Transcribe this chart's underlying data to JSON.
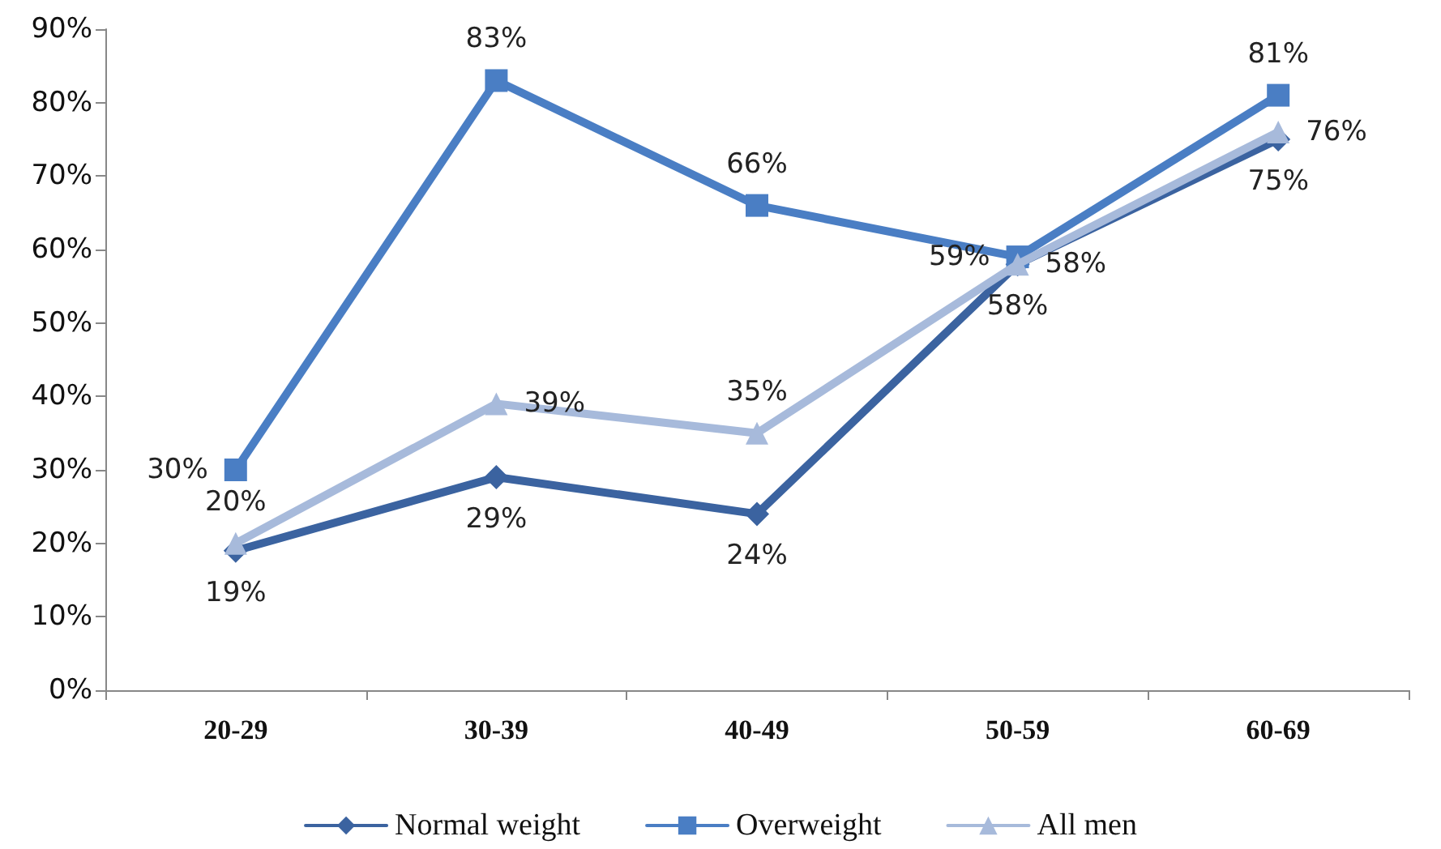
{
  "chart_data": {
    "type": "line",
    "categories": [
      "20-29",
      "30-39",
      "40-49",
      "50-59",
      "60-69"
    ],
    "ylim": [
      0,
      90
    ],
    "yticks": [
      {
        "value": 0,
        "label": "0%"
      },
      {
        "value": 10,
        "label": "10%"
      },
      {
        "value": 20,
        "label": "20%"
      },
      {
        "value": 30,
        "label": "30%"
      },
      {
        "value": 40,
        "label": "40%"
      },
      {
        "value": 50,
        "label": "50%"
      },
      {
        "value": 60,
        "label": "60%"
      },
      {
        "value": 70,
        "label": "70%"
      },
      {
        "value": 80,
        "label": "80%"
      },
      {
        "value": 90,
        "label": "90%"
      }
    ],
    "legend": "bottom",
    "line_style": "solid",
    "series": [
      {
        "name": "Normal weight",
        "color": "#3b63a0",
        "marker": "diamond",
        "values": [
          19,
          29,
          24,
          58,
          75
        ],
        "value_labels": [
          "19%",
          "29%",
          "24%",
          "58%",
          "75%"
        ]
      },
      {
        "name": "Overweight",
        "color": "#4a7ec4",
        "marker": "square",
        "values": [
          30,
          83,
          66,
          59,
          81
        ],
        "value_labels": [
          "30%",
          "83%",
          "66%",
          "59%",
          "81%"
        ]
      },
      {
        "name": "All men",
        "color": "#a7badb",
        "marker": "triangle",
        "values": [
          20,
          39,
          35,
          58,
          76
        ],
        "value_labels": [
          "20%",
          "39%",
          "35%",
          "58%",
          "76%"
        ]
      }
    ]
  }
}
